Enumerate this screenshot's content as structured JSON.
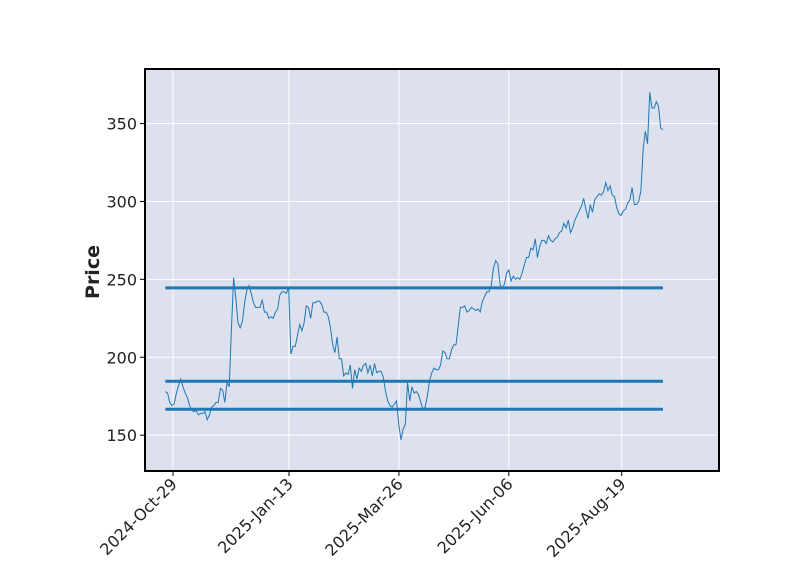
{
  "chart_data": {
    "type": "line",
    "title": "",
    "xlabel": "",
    "ylabel": "Price",
    "x_tick_labels": [
      "2024-Oct-29",
      "2025-Jan-13",
      "2025-Mar-26",
      "2025-Jun-06",
      "2025-Aug-19"
    ],
    "y_tick_labels": [
      "150",
      "200",
      "250",
      "300",
      "350"
    ],
    "y_ticks": [
      150,
      200,
      250,
      300,
      350
    ],
    "ylim": [
      127,
      385
    ],
    "grid": true,
    "background": "#dde1ee",
    "line_color": "#1f77b4",
    "series": [
      {
        "values": [
          178,
          177,
          171,
          169,
          170,
          177,
          182,
          186,
          181,
          177,
          174,
          169,
          166,
          165,
          166,
          163,
          164,
          164,
          165,
          160,
          163,
          168,
          169,
          171,
          171,
          180,
          179,
          171,
          184,
          181,
          218,
          251,
          238,
          222,
          219,
          223,
          235,
          243,
          246,
          241,
          235,
          232,
          232,
          232,
          237,
          229,
          229,
          225,
          226,
          225,
          229,
          231,
          240,
          242,
          242,
          241,
          245,
          202,
          207,
          207,
          214,
          221,
          217,
          222,
          233,
          232,
          225,
          235,
          235,
          236,
          236,
          234,
          229,
          229,
          226,
          219,
          208,
          203,
          213,
          199,
          199,
          188,
          190,
          189,
          195,
          180,
          192,
          186,
          193,
          191,
          195,
          196,
          190,
          195,
          188,
          196,
          190,
          191,
          191,
          187,
          178,
          172,
          169,
          168,
          170,
          172,
          157,
          147,
          154,
          157,
          184,
          172,
          181,
          177,
          178,
          176,
          171,
          167,
          168,
          175,
          185,
          190,
          193,
          192,
          192,
          195,
          204,
          203,
          199,
          199,
          205,
          208,
          208,
          220,
          232,
          232,
          233,
          229,
          230,
          232,
          231,
          230,
          231,
          229,
          236,
          239,
          242,
          242,
          246,
          257,
          262,
          260,
          247,
          244,
          247,
          254,
          256,
          249,
          252,
          250,
          251,
          250,
          254,
          259,
          264,
          264,
          270,
          269,
          276,
          264,
          271,
          275,
          275,
          273,
          278,
          275,
          274,
          276,
          277,
          280,
          281,
          286,
          283,
          288,
          280,
          283,
          288,
          291,
          294,
          297,
          302,
          295,
          289,
          298,
          293,
          301,
          303,
          305,
          304,
          306,
          312,
          307,
          310,
          304,
          303,
          296,
          292,
          291,
          294,
          295,
          299,
          301,
          309,
          298,
          298,
          300,
          307,
          333,
          345,
          337,
          370,
          360,
          360,
          364,
          361,
          347,
          346
        ],
        "x_start": "2024-10-24",
        "x_end": "2025-09-15"
      }
    ],
    "hlines": [
      {
        "y": 244.5,
        "x_start": "2024-10-24",
        "x_end": "2025-09-15",
        "color": "#1f77b4"
      },
      {
        "y": 184.6,
        "x_start": "2024-10-24",
        "x_end": "2025-09-15",
        "color": "#1f77b4"
      },
      {
        "y": 166.6,
        "x_start": "2024-10-24",
        "x_end": "2025-09-15",
        "color": "#1f77b4"
      }
    ]
  }
}
